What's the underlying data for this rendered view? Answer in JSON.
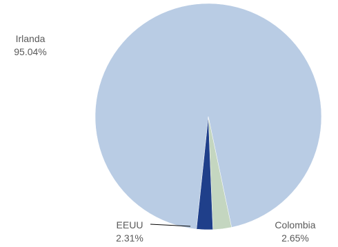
{
  "chart_data": {
    "type": "pie",
    "title": "",
    "slices": [
      {
        "label": "Irlanda",
        "value": 95.04,
        "value_label": "95.04%",
        "color": "#b9cce4"
      },
      {
        "label": "Colombia",
        "value": 2.65,
        "value_label": "2.65%",
        "color": "#c4d6c0"
      },
      {
        "label": "EEUU",
        "value": 2.31,
        "value_label": "2.31%",
        "color": "#1f3f8a"
      }
    ],
    "legend": "none",
    "data_labels": "outside"
  }
}
